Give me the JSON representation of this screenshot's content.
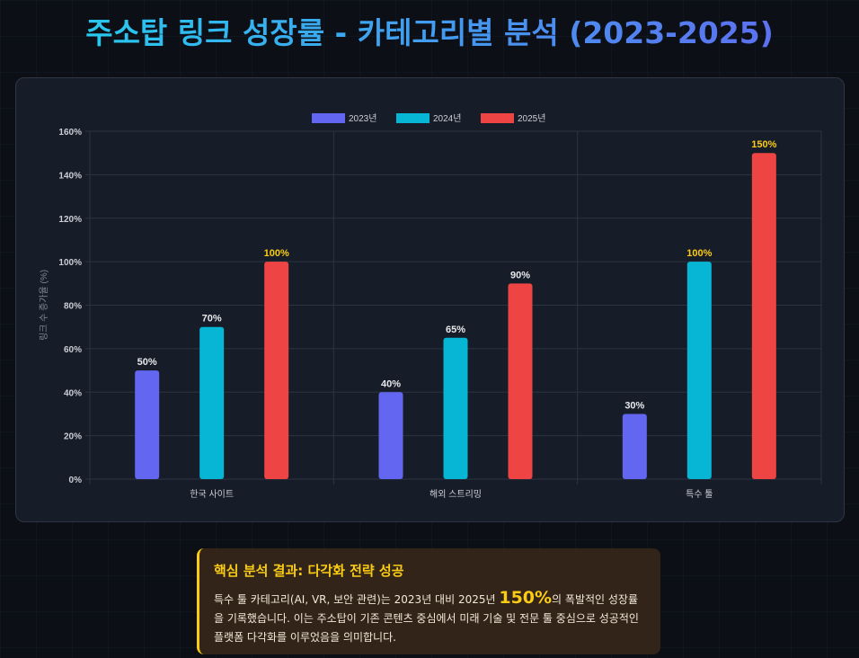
{
  "title": "주소탑 링크 성장률 - 카테고리별 분석 (2023-2025)",
  "chart_data": {
    "type": "bar",
    "categories": [
      "한국 사이트",
      "해외 스트리밍",
      "특수 툴"
    ],
    "series": [
      {
        "name": "2023년",
        "color": "#6366f1",
        "values": [
          50,
          40,
          30
        ]
      },
      {
        "name": "2024년",
        "color": "#06b6d4",
        "values": [
          70,
          65,
          100
        ]
      },
      {
        "name": "2025년",
        "color": "#ef4444",
        "values": [
          100,
          90,
          150
        ]
      }
    ],
    "ylabel": "링크 수 증가율 (%)",
    "ylim": [
      0,
      160
    ],
    "yticks": [
      0,
      20,
      40,
      60,
      80,
      100,
      120,
      140,
      160
    ],
    "tick_suffix": "%",
    "legend": "top",
    "grid": true,
    "data_labels": true,
    "highlight_label_color": "#facc15"
  },
  "insight": {
    "heading": "핵심 분석 결과: 다각화 전략 성공",
    "text_before": "특수 툴 카테고리(AI, VR, 보안 관련)는 2023년 대비 2025년 ",
    "highlight": "150%",
    "text_after": "의 폭발적인 성장률을 기록했습니다. 이는 주소탑이 기존 콘텐츠 중심에서 미래 기술 및 전문 툴 중심으로 성공적인 플랫폼 다각화를 이루었음을 의미합니다."
  }
}
